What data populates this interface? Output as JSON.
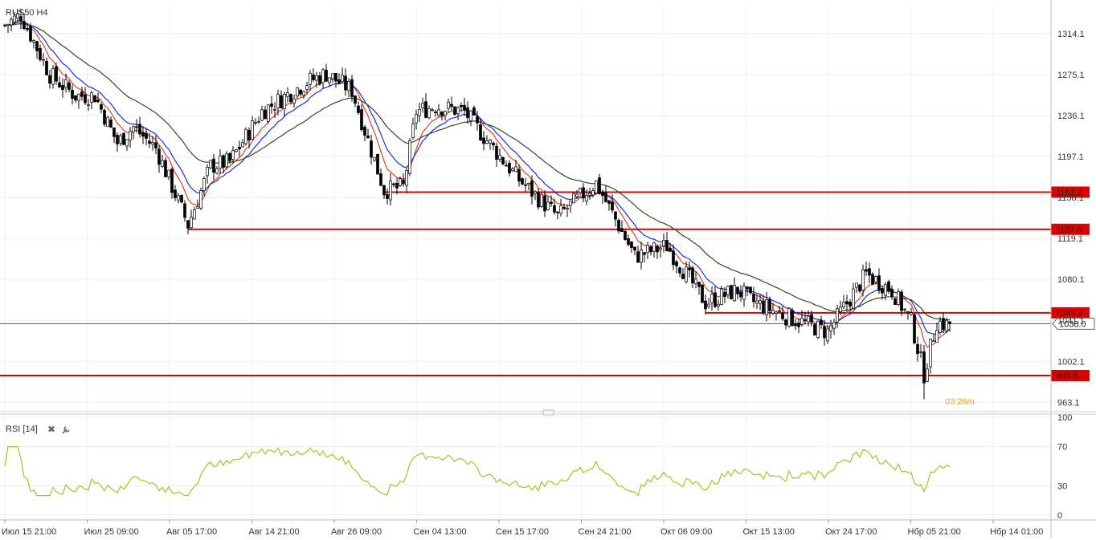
{
  "chart_data": {
    "type": "candlestick",
    "title": "RUS50 H4",
    "price_axis": {
      "ylim": [
        955,
        1340
      ],
      "ticks": [
        1314.1,
        1275.1,
        1236.1,
        1197.1,
        1158.1,
        1119.1,
        1080.1,
        1041.1,
        1002.1,
        963.1
      ],
      "tick_labels": [
        "1314.1",
        "1275.1",
        "1236.1",
        "1197.1",
        "1158.1",
        "1119.1",
        "1080.1",
        "1041.1",
        "1002.1",
        "963.1"
      ]
    },
    "time_axis_labels": [
      "Июл 15 21:00",
      "Июл 25 09:00",
      "Авг 05 17:00",
      "Авг 14 21:00",
      "Авг 26 09:00",
      "Сен 04 13:00",
      "Сен 15 17:00",
      "Сен 24 21:00",
      "Окт 06 09:00",
      "Окт 15 13:00",
      "Окт 24 17:00",
      "Нбр 05 21:00",
      "Нбр 14 01:00"
    ],
    "current_price": {
      "value": 1038.0,
      "label": "1038.0",
      "color": "#555555"
    },
    "countdown": {
      "label": "03:26m",
      "color": "#e8a317"
    },
    "levels": [
      {
        "value": 1163.2,
        "label": "1163.2",
        "start_candle": 118,
        "color": "#e00000"
      },
      {
        "value": 1127.8,
        "label": "1127.8",
        "start_candle": 57,
        "color": "#e00000"
      },
      {
        "value": 1048.3,
        "label": "1048.3",
        "start_candle": 218,
        "color": "#e00000"
      },
      {
        "value": 988.6,
        "label": "988.6",
        "start_candle": 0,
        "color": "#e00000"
      }
    ],
    "anchors": [
      [
        0,
        1322
      ],
      [
        5,
        1332
      ],
      [
        14,
        1275
      ],
      [
        22,
        1255
      ],
      [
        28,
        1255
      ],
      [
        35,
        1210
      ],
      [
        40,
        1225
      ],
      [
        47,
        1205
      ],
      [
        57,
        1132
      ],
      [
        64,
        1188
      ],
      [
        70,
        1192
      ],
      [
        80,
        1240
      ],
      [
        94,
        1268
      ],
      [
        100,
        1276
      ],
      [
        108,
        1260
      ],
      [
        118,
        1165
      ],
      [
        124,
        1168
      ],
      [
        128,
        1240
      ],
      [
        134,
        1245
      ],
      [
        143,
        1240
      ],
      [
        148,
        1220
      ],
      [
        160,
        1175
      ],
      [
        172,
        1140
      ],
      [
        184,
        1172
      ],
      [
        196,
        1102
      ],
      [
        206,
        1112
      ],
      [
        218,
        1058
      ],
      [
        228,
        1070
      ],
      [
        232,
        1060
      ],
      [
        244,
        1044
      ],
      [
        256,
        1030
      ],
      [
        268,
        1085
      ],
      [
        276,
        1070
      ],
      [
        282,
        1040
      ],
      [
        286,
        990
      ],
      [
        290,
        1040
      ],
      [
        294,
        1036
      ]
    ],
    "candle_count": 295,
    "series": [
      {
        "name": "MA fast",
        "color": "#e8401a"
      },
      {
        "name": "MA mid",
        "color": "#1a2ee8"
      },
      {
        "name": "MA slow",
        "color": "#2d4a1e"
      }
    ],
    "rsi": {
      "label": "RSI [14]",
      "ylim": [
        0,
        100
      ],
      "ticks": [
        100,
        70,
        30,
        0
      ],
      "tick_labels": [
        "100",
        "70",
        "30",
        "0"
      ],
      "color": "#a3c422"
    }
  }
}
